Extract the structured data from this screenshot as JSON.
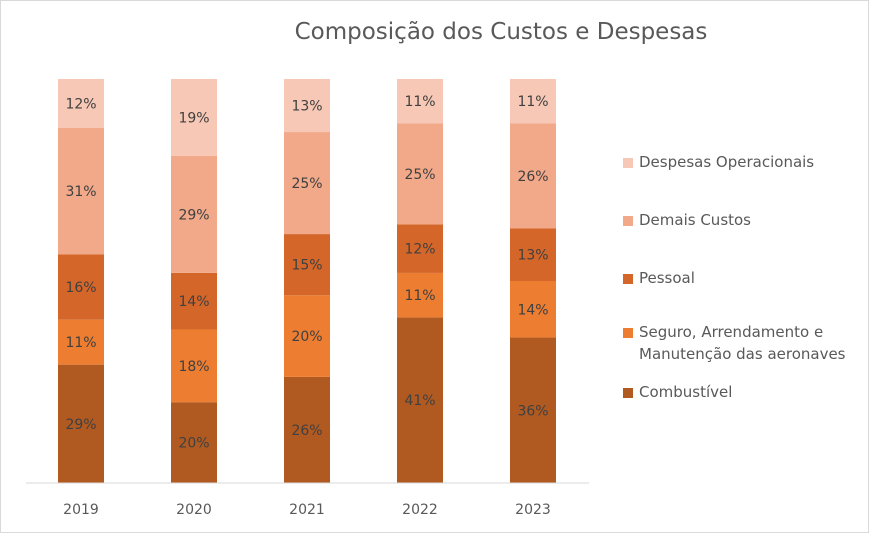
{
  "chart_data": {
    "type": "bar",
    "stacked": true,
    "percent_stacked": true,
    "title": "Composição dos Custos e Despesas",
    "categories": [
      "2019",
      "2020",
      "2021",
      "2022",
      "2023"
    ],
    "series": [
      {
        "name": "Combustível",
        "color": "#b05a22",
        "values": [
          29,
          20,
          26,
          41,
          36
        ]
      },
      {
        "name": "Seguro, Arrendamento e Manutenção das aeronaves",
        "name_lines": [
          "Seguro, Arrendamento e",
          "Manutenção das aeronaves"
        ],
        "color": "#ed7d31",
        "values": [
          11,
          18,
          20,
          11,
          14
        ]
      },
      {
        "name": "Pessoal",
        "color": "#d4662a",
        "values": [
          16,
          14,
          15,
          12,
          13
        ]
      },
      {
        "name": "Demais Custos",
        "color": "#f1a98a",
        "values": [
          31,
          29,
          25,
          25,
          26
        ]
      },
      {
        "name": "Despesas Operacionais",
        "color": "#f7c8b5",
        "values": [
          12,
          19,
          13,
          11,
          11
        ]
      }
    ],
    "data_label_suffix": "%",
    "legend_position": "right",
    "legend_order": [
      "Despesas Operacionais",
      "Demais Custos",
      "Pessoal",
      "Seguro, Arrendamento e Manutenção das aeronaves",
      "Combustível"
    ],
    "gridlines": false
  }
}
